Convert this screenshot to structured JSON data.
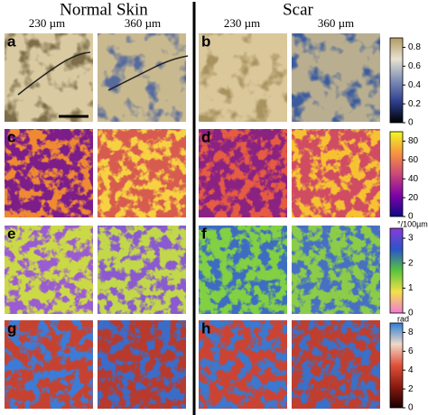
{
  "header": {
    "groups": [
      "Normal Skin",
      "Scar"
    ],
    "sizes": [
      "230 µm",
      "360 µm",
      "230 µm",
      "360 µm"
    ]
  },
  "panels": {
    "labels": [
      "a",
      "b",
      "c",
      "d",
      "e",
      "f",
      "g",
      "h"
    ]
  },
  "colorbars": [
    {
      "lim": [
        0,
        0.9
      ],
      "ticks": [
        0,
        0.2,
        0.4,
        0.6,
        0.8
      ]
    },
    {
      "lim": [
        0,
        90
      ],
      "ticks": [
        0,
        20,
        40,
        60,
        80
      ]
    },
    {
      "label": "°/100µm",
      "lim": [
        0,
        3.4
      ],
      "ticks": [
        0,
        1,
        2,
        3
      ]
    },
    {
      "label": "rad",
      "lim": [
        0,
        9
      ],
      "ticks": [
        0,
        2,
        4,
        6,
        8
      ]
    }
  ]
}
